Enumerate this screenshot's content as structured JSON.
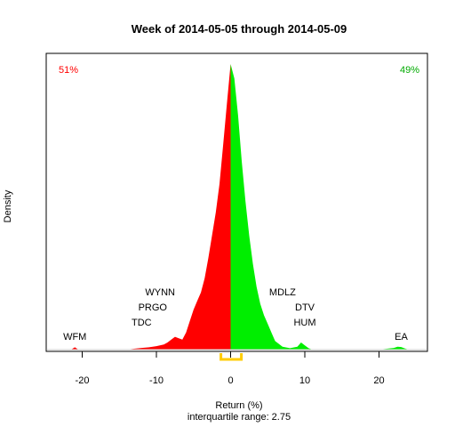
{
  "chart_data": {
    "type": "area",
    "title": "Week of 2014-05-05 through 2014-05-09",
    "xlabel": "Return (%)",
    "ylabel": "Density",
    "subtitle": "interquartile range: 2.75",
    "xlim": [
      -25,
      27
    ],
    "xticks": [
      -20,
      -10,
      0,
      10,
      20
    ],
    "down_pct": "51%",
    "up_pct": "49%",
    "colors": {
      "down": "#ff0000",
      "up": "#00ee00",
      "iqr": "#ffcc00"
    },
    "iqr": [
      -1.3,
      1.45
    ],
    "density": {
      "x": [
        -21.5,
        -21.0,
        -20.5,
        -19.0,
        -14.0,
        -13.0,
        -12.0,
        -11.0,
        -10.0,
        -9.0,
        -8.5,
        -8.0,
        -7.5,
        -7.0,
        -6.5,
        -6.0,
        -5.5,
        -5.0,
        -4.5,
        -4.0,
        -3.5,
        -3.0,
        -2.5,
        -2.0,
        -1.5,
        -1.0,
        -0.5,
        0.0,
        0.5,
        1.0,
        1.5,
        2.0,
        2.5,
        3.0,
        3.5,
        4.0,
        4.5,
        5.0,
        5.5,
        6.0,
        7.0,
        8.0,
        9.0,
        9.5,
        10.0,
        10.5,
        11.0,
        12.0,
        20.0,
        22.0,
        22.5,
        23.0,
        23.5,
        24.0
      ],
      "y": [
        0.0,
        0.008,
        0.0,
        0.0,
        0.0,
        0.003,
        0.006,
        0.008,
        0.012,
        0.018,
        0.025,
        0.035,
        0.045,
        0.04,
        0.035,
        0.06,
        0.1,
        0.14,
        0.17,
        0.2,
        0.25,
        0.32,
        0.4,
        0.48,
        0.58,
        0.72,
        0.86,
        1.0,
        0.95,
        0.82,
        0.66,
        0.52,
        0.4,
        0.3,
        0.22,
        0.16,
        0.12,
        0.09,
        0.06,
        0.03,
        0.01,
        0.005,
        0.01,
        0.025,
        0.015,
        0.005,
        0.0,
        0.0,
        0.0,
        0.006,
        0.01,
        0.009,
        0.004,
        0.0
      ]
    },
    "annotations": [
      {
        "label": "WFM",
        "x": -21,
        "level": 1
      },
      {
        "label": "TDC",
        "x": -12,
        "level": 2
      },
      {
        "label": "PRGO",
        "x": -10.5,
        "level": 3
      },
      {
        "label": "WYNN",
        "x": -9.5,
        "level": 4
      },
      {
        "label": "MDLZ",
        "x": 7,
        "level": 4
      },
      {
        "label": "DTV",
        "x": 10,
        "level": 3
      },
      {
        "label": "HUM",
        "x": 10,
        "level": 2
      },
      {
        "label": "EA",
        "x": 23,
        "level": 1
      }
    ]
  }
}
